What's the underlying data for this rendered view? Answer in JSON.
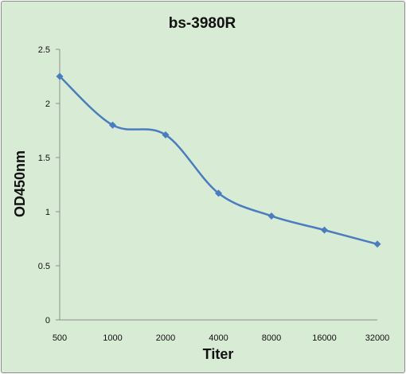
{
  "chart_data": {
    "type": "line",
    "title": "bs-3980R",
    "xlabel": "Titer",
    "ylabel": "OD450nm",
    "categories": [
      "500",
      "1000",
      "2000",
      "4000",
      "8000",
      "16000",
      "32000"
    ],
    "series": [
      {
        "values": [
          2.25,
          1.8,
          1.71,
          1.17,
          0.96,
          0.83,
          0.7
        ]
      }
    ],
    "yticks": [
      "0",
      "0.5",
      "1",
      "1.5",
      "2",
      "2.5"
    ],
    "ylim": [
      0,
      2.5
    ],
    "grid": false,
    "legend": "none",
    "colors": {
      "line": "#4a7cc0",
      "background": "#d8ebd4"
    }
  }
}
